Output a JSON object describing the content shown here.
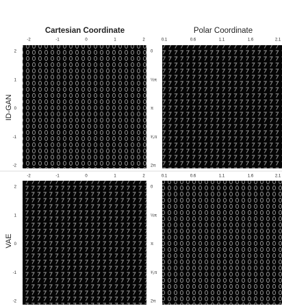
{
  "columns": [
    "Cartesian Coordinate",
    "Polar Coordinate"
  ],
  "rows": [
    "ID-GAN",
    "VAE"
  ],
  "cartesian_x_ticks": [
    "-2",
    "-1",
    "0",
    "1",
    "2"
  ],
  "cartesian_y_ticks": [
    "2",
    "1",
    "0",
    "-1",
    "-2"
  ],
  "polar_x_ticks": [
    "0.1",
    "0.6",
    "1.1",
    "1.6",
    "2.1"
  ],
  "polar_y_ticks": [
    "0",
    "½π",
    "π",
    "³⁄₂π",
    "2π"
  ]
}
